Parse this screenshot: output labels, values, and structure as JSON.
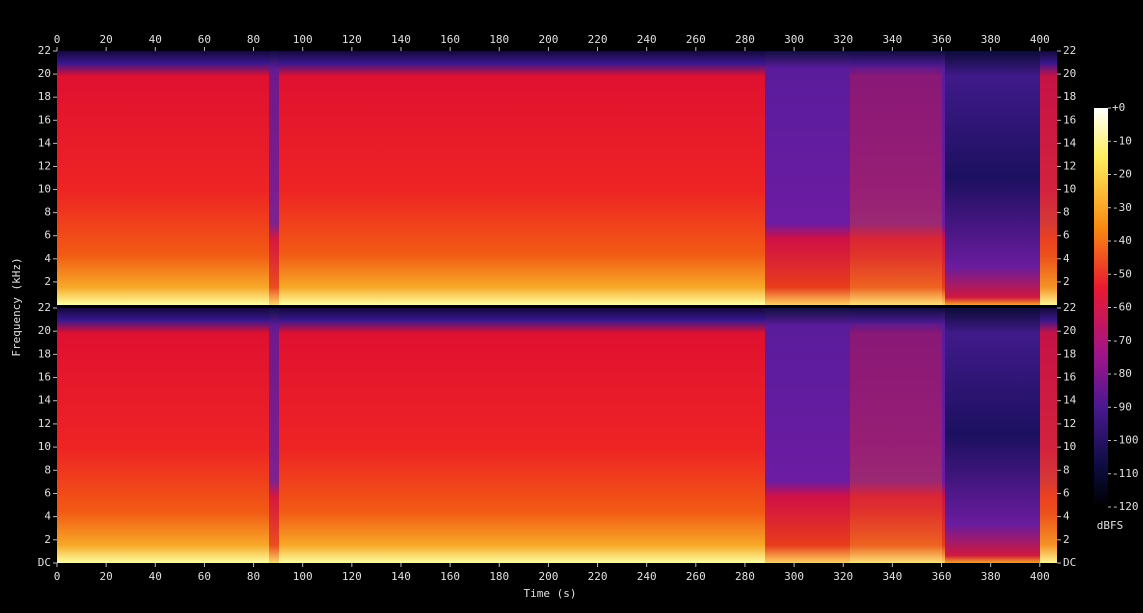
{
  "chart_data": {
    "type": "spectrogram",
    "xlabel": "Time (s)",
    "ylabel": "Frequency (kHz)",
    "xlim": [
      0,
      407
    ],
    "xticks": [
      0,
      20,
      40,
      60,
      80,
      100,
      120,
      140,
      160,
      180,
      200,
      220,
      240,
      260,
      280,
      300,
      320,
      340,
      360,
      380,
      400
    ],
    "panels": [
      {
        "ylim": [
          0,
          22
        ],
        "yticks": [
          2,
          4,
          6,
          8,
          10,
          12,
          14,
          16,
          18,
          20,
          22
        ]
      },
      {
        "ylim": [
          0,
          22
        ],
        "yticks": [
          {
            "value": 0,
            "label": "DC"
          },
          2,
          4,
          6,
          8,
          10,
          12,
          14,
          16,
          18,
          20,
          22
        ]
      }
    ],
    "colorbar": {
      "label": "dBFS",
      "lim": [
        -120,
        0
      ],
      "ticks": [
        {
          "value": 0,
          "label": "+0"
        },
        -10,
        -20,
        -30,
        -40,
        -50,
        -60,
        -70,
        -80,
        -90,
        -100,
        -110,
        -120
      ]
    }
  }
}
